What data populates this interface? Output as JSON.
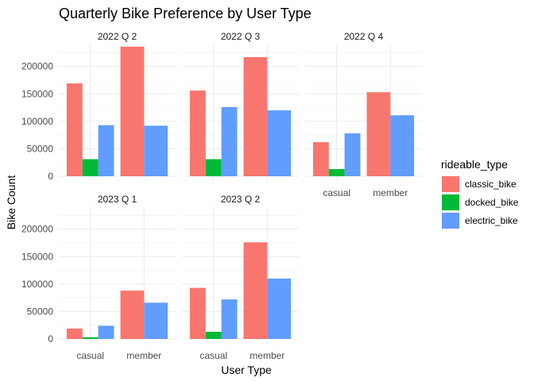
{
  "chart_data": {
    "type": "bar",
    "title": "Quarterly Bike Preference by User Type",
    "xlabel": "User Type",
    "ylabel": "Bike Count",
    "categories": [
      "casual",
      "member"
    ],
    "ylim": [
      0,
      240000
    ],
    "yticks": [
      0,
      50000,
      100000,
      150000,
      200000
    ],
    "ytick_labels": [
      "0",
      "50000",
      "100000",
      "150000",
      "200000"
    ],
    "grid": true,
    "legend": {
      "title": "rideable_type",
      "position": "right",
      "entries": [
        {
          "name": "classic_bike",
          "color": "#F8766D"
        },
        {
          "name": "docked_bike",
          "color": "#00BA38"
        },
        {
          "name": "electric_bike",
          "color": "#619CFF"
        }
      ]
    },
    "facets": [
      {
        "label": "2022 Q 2",
        "values": {
          "casual": {
            "classic_bike": 169000,
            "docked_bike": 31000,
            "electric_bike": 93000
          },
          "member": {
            "classic_bike": 236000,
            "electric_bike": 92000
          }
        }
      },
      {
        "label": "2022 Q 3",
        "values": {
          "casual": {
            "classic_bike": 156000,
            "docked_bike": 31000,
            "electric_bike": 126000
          },
          "member": {
            "classic_bike": 217000,
            "electric_bike": 120000
          }
        }
      },
      {
        "label": "2022 Q 4",
        "values": {
          "casual": {
            "classic_bike": 62000,
            "docked_bike": 13000,
            "electric_bike": 78000
          },
          "member": {
            "classic_bike": 153000,
            "electric_bike": 111000
          }
        }
      },
      {
        "label": "2023 Q 1",
        "values": {
          "casual": {
            "classic_bike": 19000,
            "docked_bike": 3000,
            "electric_bike": 24000
          },
          "member": {
            "classic_bike": 88000,
            "electric_bike": 66000
          }
        }
      },
      {
        "label": "2023 Q 2",
        "values": {
          "casual": {
            "classic_bike": 93000,
            "docked_bike": 13000,
            "electric_bike": 72000
          },
          "member": {
            "classic_bike": 176000,
            "electric_bike": 110000
          }
        }
      }
    ]
  }
}
